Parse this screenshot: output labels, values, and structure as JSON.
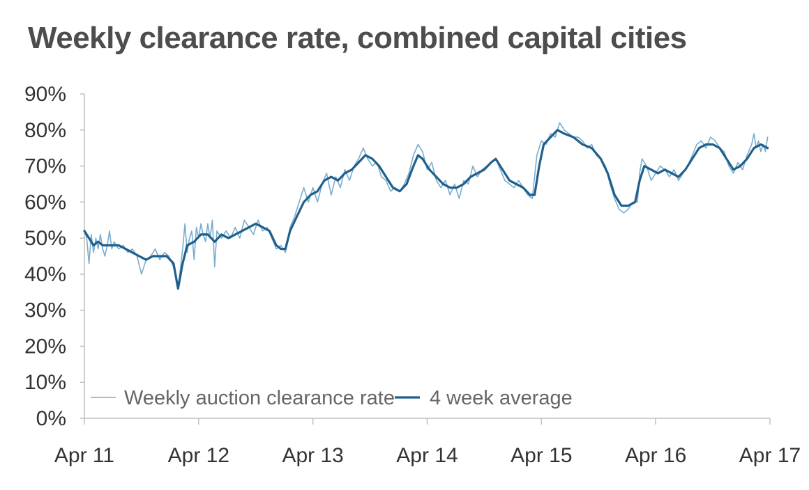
{
  "title": "Weekly clearance rate, combined capital cities",
  "chart_data": {
    "type": "line",
    "title": "Weekly clearance rate, combined capital cities",
    "xlabel": "",
    "ylabel": "",
    "ylim": [
      0,
      90
    ],
    "xlim": [
      "Apr 11",
      "Apr 17"
    ],
    "y_ticks": [
      "0%",
      "10%",
      "20%",
      "30%",
      "40%",
      "50%",
      "60%",
      "70%",
      "80%",
      "90%"
    ],
    "x_ticks": [
      "Apr 11",
      "Apr 12",
      "Apr 13",
      "Apr 14",
      "Apr 15",
      "Apr 16",
      "Apr 17"
    ],
    "grid": false,
    "legend_position": "bottom-left",
    "series": [
      {
        "name": "Weekly auction clearance rate",
        "color": "#7aaccd",
        "points": [
          [
            0.0,
            52
          ],
          [
            0.02,
            50
          ],
          [
            0.04,
            43
          ],
          [
            0.06,
            51
          ],
          [
            0.08,
            46
          ],
          [
            0.1,
            50
          ],
          [
            0.12,
            47
          ],
          [
            0.14,
            51
          ],
          [
            0.16,
            47
          ],
          [
            0.18,
            45
          ],
          [
            0.2,
            48
          ],
          [
            0.22,
            52
          ],
          [
            0.24,
            47
          ],
          [
            0.26,
            49
          ],
          [
            0.3,
            47
          ],
          [
            0.34,
            48
          ],
          [
            0.38,
            46
          ],
          [
            0.42,
            47
          ],
          [
            0.46,
            45
          ],
          [
            0.5,
            40
          ],
          [
            0.54,
            44
          ],
          [
            0.58,
            45
          ],
          [
            0.62,
            47
          ],
          [
            0.66,
            44
          ],
          [
            0.7,
            46
          ],
          [
            0.74,
            45
          ],
          [
            0.78,
            42
          ],
          [
            0.82,
            36
          ],
          [
            0.86,
            47
          ],
          [
            0.88,
            54
          ],
          [
            0.9,
            46
          ],
          [
            0.92,
            50
          ],
          [
            0.94,
            52
          ],
          [
            0.96,
            44
          ],
          [
            0.98,
            53
          ],
          [
            1.0,
            50
          ],
          [
            1.02,
            54
          ],
          [
            1.04,
            51
          ],
          [
            1.06,
            49
          ],
          [
            1.08,
            54
          ],
          [
            1.1,
            50
          ],
          [
            1.12,
            55
          ],
          [
            1.14,
            42
          ],
          [
            1.16,
            52
          ],
          [
            1.2,
            50
          ],
          [
            1.24,
            52
          ],
          [
            1.28,
            50
          ],
          [
            1.32,
            53
          ],
          [
            1.36,
            50
          ],
          [
            1.4,
            55
          ],
          [
            1.44,
            53
          ],
          [
            1.48,
            51
          ],
          [
            1.52,
            55
          ],
          [
            1.56,
            52
          ],
          [
            1.6,
            53
          ],
          [
            1.64,
            50
          ],
          [
            1.68,
            47
          ],
          [
            1.72,
            48
          ],
          [
            1.76,
            46
          ],
          [
            1.8,
            53
          ],
          [
            1.84,
            56
          ],
          [
            1.88,
            60
          ],
          [
            1.92,
            64
          ],
          [
            1.96,
            60
          ],
          [
            2.0,
            64
          ],
          [
            2.04,
            60
          ],
          [
            2.08,
            65
          ],
          [
            2.12,
            68
          ],
          [
            2.16,
            62
          ],
          [
            2.2,
            67
          ],
          [
            2.24,
            64
          ],
          [
            2.28,
            69
          ],
          [
            2.32,
            66
          ],
          [
            2.36,
            70
          ],
          [
            2.4,
            72
          ],
          [
            2.44,
            75
          ],
          [
            2.48,
            72
          ],
          [
            2.52,
            70
          ],
          [
            2.56,
            71
          ],
          [
            2.6,
            67
          ],
          [
            2.64,
            66
          ],
          [
            2.68,
            63
          ],
          [
            2.72,
            64
          ],
          [
            2.76,
            63
          ],
          [
            2.8,
            65
          ],
          [
            2.84,
            68
          ],
          [
            2.88,
            73
          ],
          [
            2.92,
            76
          ],
          [
            2.96,
            74
          ],
          [
            3.0,
            69
          ],
          [
            3.04,
            71
          ],
          [
            3.08,
            66
          ],
          [
            3.12,
            64
          ],
          [
            3.16,
            66
          ],
          [
            3.2,
            62
          ],
          [
            3.24,
            65
          ],
          [
            3.28,
            61
          ],
          [
            3.32,
            66
          ],
          [
            3.36,
            65
          ],
          [
            3.4,
            70
          ],
          [
            3.44,
            67
          ],
          [
            3.48,
            69
          ],
          [
            3.52,
            70
          ],
          [
            3.56,
            71
          ],
          [
            3.6,
            72
          ],
          [
            3.64,
            69
          ],
          [
            3.68,
            66
          ],
          [
            3.72,
            65
          ],
          [
            3.76,
            64
          ],
          [
            3.8,
            66
          ],
          [
            3.84,
            64
          ],
          [
            3.88,
            62
          ],
          [
            3.92,
            61
          ],
          [
            3.96,
            73
          ],
          [
            4.0,
            77
          ],
          [
            4.04,
            76
          ],
          [
            4.08,
            79
          ],
          [
            4.12,
            78
          ],
          [
            4.16,
            82
          ],
          [
            4.2,
            80
          ],
          [
            4.24,
            79
          ],
          [
            4.28,
            78
          ],
          [
            4.32,
            78
          ],
          [
            4.36,
            77
          ],
          [
            4.4,
            75
          ],
          [
            4.44,
            76
          ],
          [
            4.48,
            73
          ],
          [
            4.52,
            72
          ],
          [
            4.56,
            70
          ],
          [
            4.6,
            65
          ],
          [
            4.64,
            61
          ],
          [
            4.68,
            58
          ],
          [
            4.72,
            57
          ],
          [
            4.76,
            58
          ],
          [
            4.8,
            60
          ],
          [
            4.84,
            60
          ],
          [
            4.86,
            68
          ],
          [
            4.88,
            72
          ],
          [
            4.92,
            70
          ],
          [
            4.96,
            66
          ],
          [
            5.0,
            68
          ],
          [
            5.04,
            70
          ],
          [
            5.08,
            69
          ],
          [
            5.12,
            67
          ],
          [
            5.16,
            69
          ],
          [
            5.2,
            66
          ],
          [
            5.24,
            68
          ],
          [
            5.28,
            70
          ],
          [
            5.32,
            73
          ],
          [
            5.36,
            76
          ],
          [
            5.4,
            77
          ],
          [
            5.44,
            75
          ],
          [
            5.48,
            78
          ],
          [
            5.52,
            77
          ],
          [
            5.56,
            75
          ],
          [
            5.6,
            74
          ],
          [
            5.64,
            70
          ],
          [
            5.68,
            68
          ],
          [
            5.72,
            71
          ],
          [
            5.76,
            69
          ],
          [
            5.8,
            73
          ],
          [
            5.84,
            76
          ],
          [
            5.86,
            79
          ],
          [
            5.88,
            75
          ],
          [
            5.9,
            77
          ],
          [
            5.92,
            74
          ],
          [
            5.94,
            76
          ],
          [
            5.96,
            74
          ],
          [
            5.98,
            78
          ]
        ]
      },
      {
        "name": "4 week average",
        "color": "#1f5f8b",
        "points": [
          [
            0.0,
            52
          ],
          [
            0.04,
            50
          ],
          [
            0.08,
            48
          ],
          [
            0.12,
            49
          ],
          [
            0.16,
            48
          ],
          [
            0.2,
            48
          ],
          [
            0.24,
            48
          ],
          [
            0.3,
            48
          ],
          [
            0.36,
            47
          ],
          [
            0.42,
            46
          ],
          [
            0.48,
            45
          ],
          [
            0.54,
            44
          ],
          [
            0.6,
            45
          ],
          [
            0.66,
            45
          ],
          [
            0.72,
            45
          ],
          [
            0.78,
            43
          ],
          [
            0.82,
            36
          ],
          [
            0.86,
            43
          ],
          [
            0.9,
            48
          ],
          [
            0.96,
            49
          ],
          [
            1.02,
            51
          ],
          [
            1.08,
            51
          ],
          [
            1.14,
            49
          ],
          [
            1.2,
            51
          ],
          [
            1.26,
            50
          ],
          [
            1.32,
            51
          ],
          [
            1.38,
            52
          ],
          [
            1.44,
            53
          ],
          [
            1.5,
            54
          ],
          [
            1.56,
            53
          ],
          [
            1.62,
            52
          ],
          [
            1.68,
            48
          ],
          [
            1.72,
            47
          ],
          [
            1.76,
            47
          ],
          [
            1.8,
            52
          ],
          [
            1.86,
            56
          ],
          [
            1.92,
            60
          ],
          [
            1.98,
            62
          ],
          [
            2.04,
            63
          ],
          [
            2.1,
            66
          ],
          [
            2.16,
            67
          ],
          [
            2.22,
            66
          ],
          [
            2.28,
            68
          ],
          [
            2.34,
            69
          ],
          [
            2.4,
            71
          ],
          [
            2.46,
            73
          ],
          [
            2.52,
            72
          ],
          [
            2.58,
            70
          ],
          [
            2.64,
            67
          ],
          [
            2.7,
            64
          ],
          [
            2.76,
            63
          ],
          [
            2.82,
            65
          ],
          [
            2.88,
            70
          ],
          [
            2.92,
            73
          ],
          [
            2.96,
            72
          ],
          [
            3.02,
            69
          ],
          [
            3.08,
            67
          ],
          [
            3.14,
            65
          ],
          [
            3.2,
            64
          ],
          [
            3.26,
            64
          ],
          [
            3.32,
            65
          ],
          [
            3.38,
            67
          ],
          [
            3.44,
            68
          ],
          [
            3.5,
            69
          ],
          [
            3.56,
            71
          ],
          [
            3.6,
            72
          ],
          [
            3.66,
            69
          ],
          [
            3.72,
            66
          ],
          [
            3.78,
            65
          ],
          [
            3.84,
            64
          ],
          [
            3.9,
            62
          ],
          [
            3.94,
            62
          ],
          [
            3.98,
            70
          ],
          [
            4.02,
            76
          ],
          [
            4.08,
            78
          ],
          [
            4.14,
            80
          ],
          [
            4.2,
            79
          ],
          [
            4.28,
            78
          ],
          [
            4.36,
            76
          ],
          [
            4.44,
            75
          ],
          [
            4.52,
            72
          ],
          [
            4.58,
            68
          ],
          [
            4.64,
            62
          ],
          [
            4.7,
            59
          ],
          [
            4.76,
            59
          ],
          [
            4.82,
            60
          ],
          [
            4.86,
            66
          ],
          [
            4.9,
            70
          ],
          [
            4.96,
            69
          ],
          [
            5.02,
            68
          ],
          [
            5.08,
            69
          ],
          [
            5.14,
            68
          ],
          [
            5.2,
            67
          ],
          [
            5.26,
            69
          ],
          [
            5.32,
            72
          ],
          [
            5.38,
            75
          ],
          [
            5.44,
            76
          ],
          [
            5.5,
            76
          ],
          [
            5.56,
            75
          ],
          [
            5.62,
            72
          ],
          [
            5.68,
            69
          ],
          [
            5.74,
            70
          ],
          [
            5.8,
            72
          ],
          [
            5.86,
            75
          ],
          [
            5.92,
            76
          ],
          [
            5.98,
            75
          ]
        ]
      }
    ]
  }
}
